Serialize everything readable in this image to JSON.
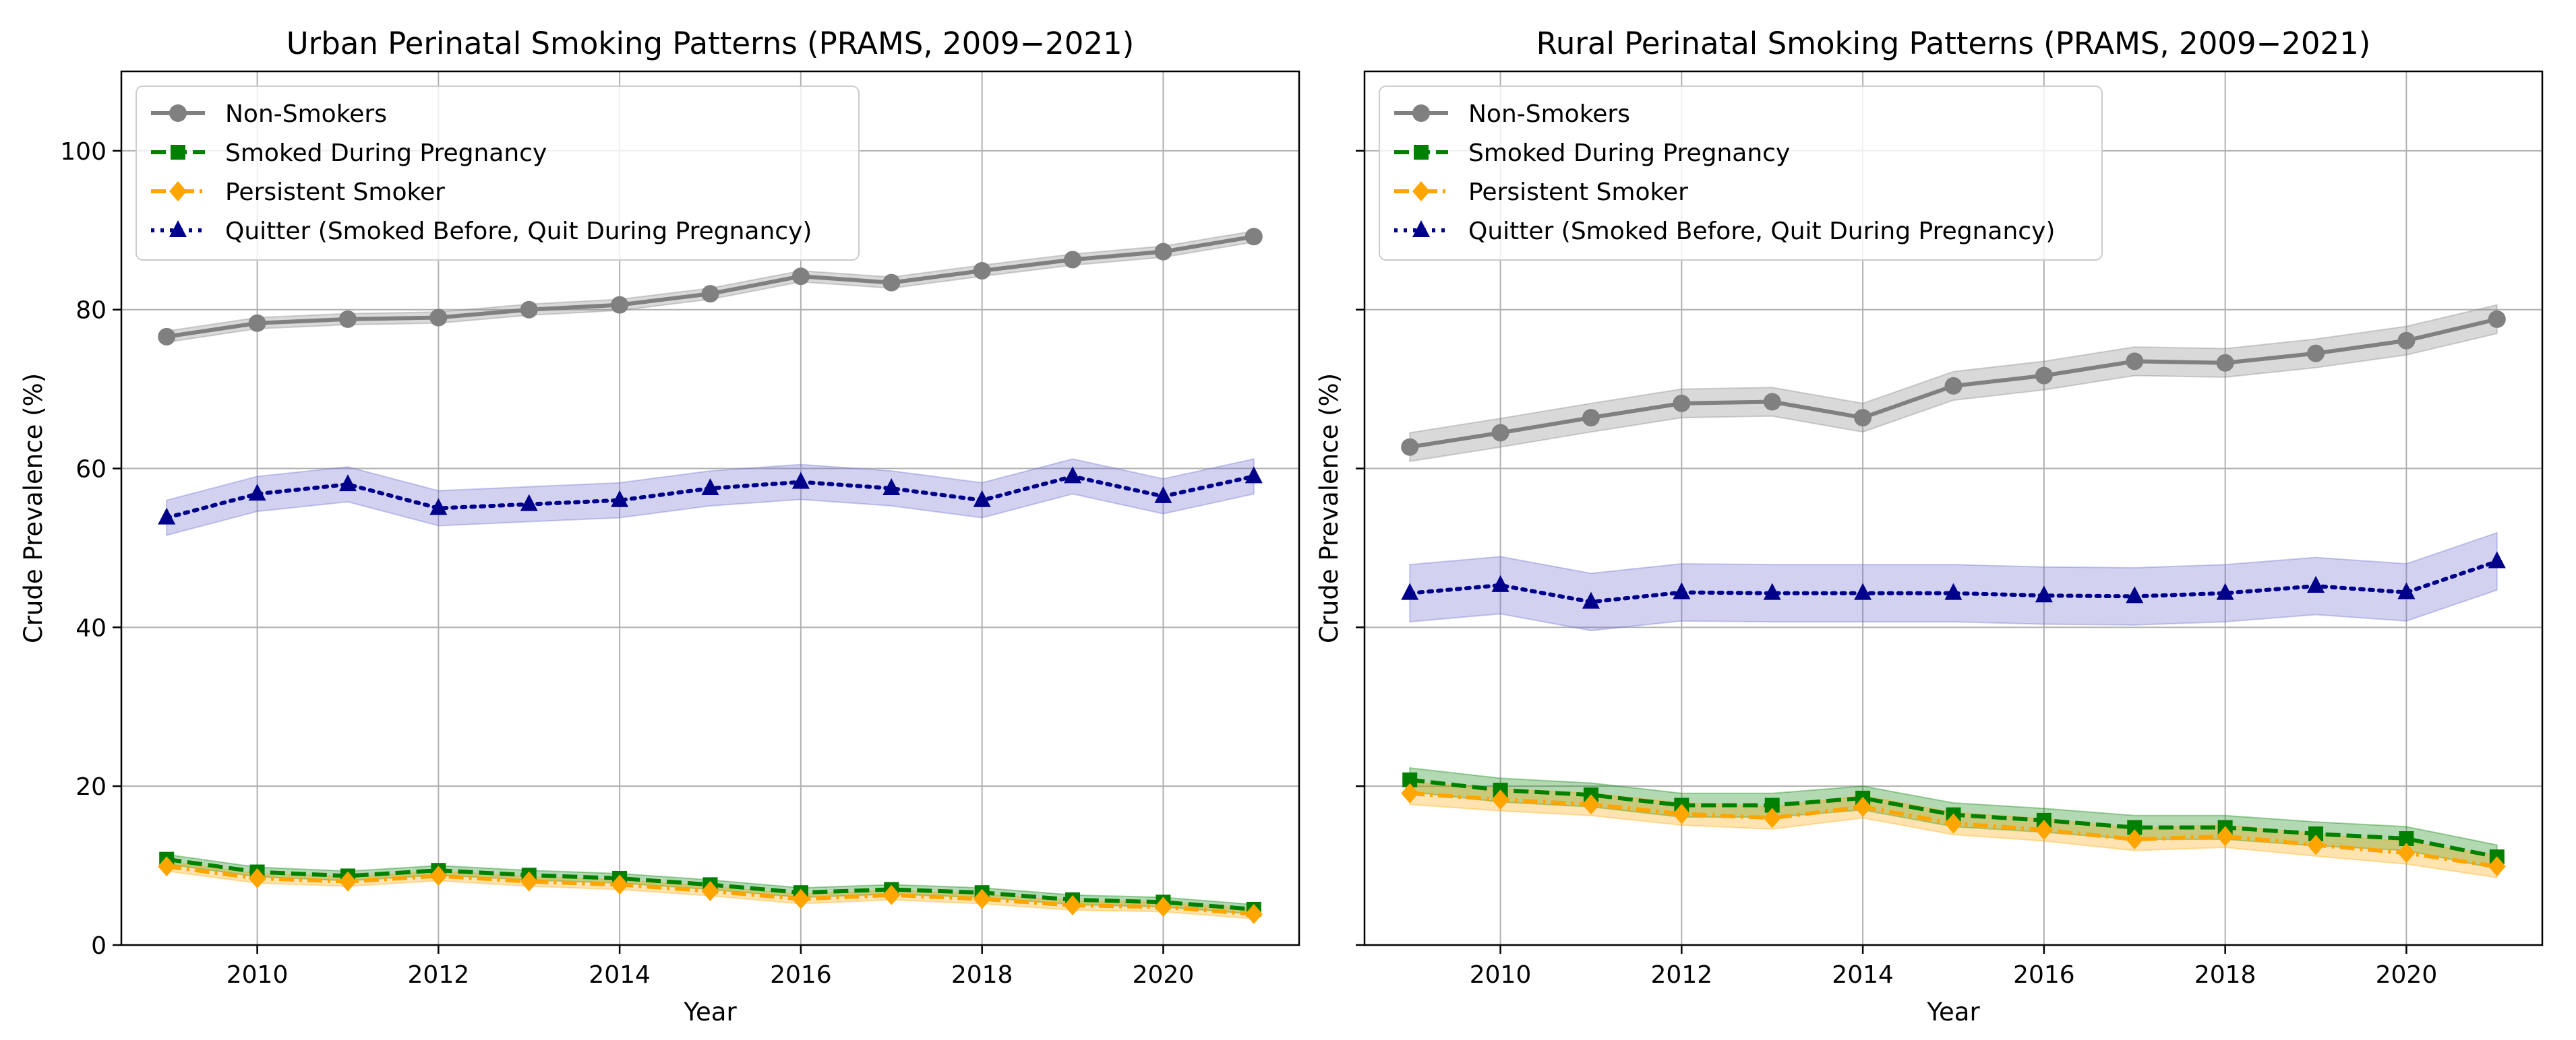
{
  "chart_data": [
    {
      "type": "line",
      "title": "Urban Perinatal Smoking Patterns (PRAMS, 2009−2021)",
      "xlabel": "Year",
      "ylabel": "Crude Prevalence (%)",
      "xlim": [
        2008.5,
        2021.5
      ],
      "ylim": [
        0,
        110
      ],
      "xticks": [
        2010,
        2012,
        2014,
        2016,
        2018,
        2020
      ],
      "yticks": [
        0,
        20,
        40,
        60,
        80,
        100
      ],
      "show_ytick_labels": true,
      "grid": true,
      "legend_position": "upper-left",
      "x": [
        2009,
        2010,
        2011,
        2012,
        2013,
        2014,
        2015,
        2016,
        2017,
        2018,
        2019,
        2020,
        2021
      ],
      "series": [
        {
          "name": "Non-Smokers",
          "color": "#808080",
          "marker": "circle",
          "dash": "solid",
          "values": [
            76.6,
            78.3,
            78.8,
            79.0,
            80.0,
            80.6,
            82.0,
            84.2,
            83.4,
            84.9,
            86.3,
            87.3,
            89.2
          ],
          "ci": 0.7
        },
        {
          "name": "Smoked During Pregnancy",
          "color": "#008000",
          "marker": "square",
          "dash": "dashed",
          "values": [
            10.8,
            9.2,
            8.7,
            9.4,
            8.8,
            8.4,
            7.6,
            6.6,
            7.0,
            6.6,
            5.7,
            5.4,
            4.5
          ],
          "ci": 0.6
        },
        {
          "name": "Persistent Smoker",
          "color": "#ffa500",
          "marker": "diamond",
          "dash": "dashdot",
          "values": [
            9.9,
            8.4,
            8.0,
            8.7,
            8.0,
            7.6,
            6.8,
            5.8,
            6.3,
            5.8,
            5.0,
            4.8,
            3.9
          ],
          "ci": 0.6
        },
        {
          "name": "Quitter (Smoked Before, Quit During Pregnancy)",
          "color": "#00008b",
          "band_color": "#6a6acd",
          "marker": "triangle",
          "dash": "dotted",
          "values": [
            53.8,
            56.8,
            58.0,
            55.0,
            55.5,
            56.0,
            57.5,
            58.3,
            57.5,
            56.0,
            59.0,
            56.5,
            59.0
          ],
          "ci": 2.2
        }
      ]
    },
    {
      "type": "line",
      "title": "Rural Perinatal Smoking Patterns (PRAMS, 2009−2021)",
      "xlabel": "Year",
      "ylabel": "Crude Prevalence (%)",
      "xlim": [
        2008.5,
        2021.5
      ],
      "ylim": [
        0,
        110
      ],
      "xticks": [
        2010,
        2012,
        2014,
        2016,
        2018,
        2020
      ],
      "yticks": [
        0,
        20,
        40,
        60,
        80,
        100
      ],
      "show_ytick_labels": false,
      "grid": true,
      "legend_position": "upper-left",
      "x": [
        2009,
        2010,
        2011,
        2012,
        2013,
        2014,
        2015,
        2016,
        2017,
        2018,
        2019,
        2020,
        2021
      ],
      "series": [
        {
          "name": "Non-Smokers",
          "color": "#808080",
          "marker": "circle",
          "dash": "solid",
          "values": [
            62.7,
            64.5,
            66.4,
            68.2,
            68.4,
            66.4,
            70.4,
            71.7,
            73.5,
            73.3,
            74.5,
            76.1,
            78.8
          ],
          "ci": 1.8
        },
        {
          "name": "Smoked During Pregnancy",
          "color": "#008000",
          "marker": "square",
          "dash": "dashed",
          "values": [
            20.8,
            19.5,
            18.9,
            17.6,
            17.6,
            18.5,
            16.4,
            15.7,
            14.8,
            14.8,
            14.0,
            13.4,
            11.1
          ],
          "ci": 1.5
        },
        {
          "name": "Persistent Smoker",
          "color": "#ffa500",
          "marker": "diamond",
          "dash": "dashdot",
          "values": [
            19.1,
            18.3,
            17.7,
            16.5,
            16.0,
            17.4,
            15.3,
            14.5,
            13.3,
            13.7,
            12.6,
            11.6,
            9.9
          ],
          "ci": 1.4
        },
        {
          "name": "Quitter (Smoked Before, Quit During Pregnancy)",
          "color": "#00008b",
          "band_color": "#6a6acd",
          "marker": "triangle",
          "dash": "dotted",
          "values": [
            44.3,
            45.3,
            43.2,
            44.4,
            44.3,
            44.3,
            44.3,
            44.0,
            43.9,
            44.3,
            45.2,
            44.4,
            48.3
          ],
          "ci": 3.6
        }
      ]
    }
  ]
}
